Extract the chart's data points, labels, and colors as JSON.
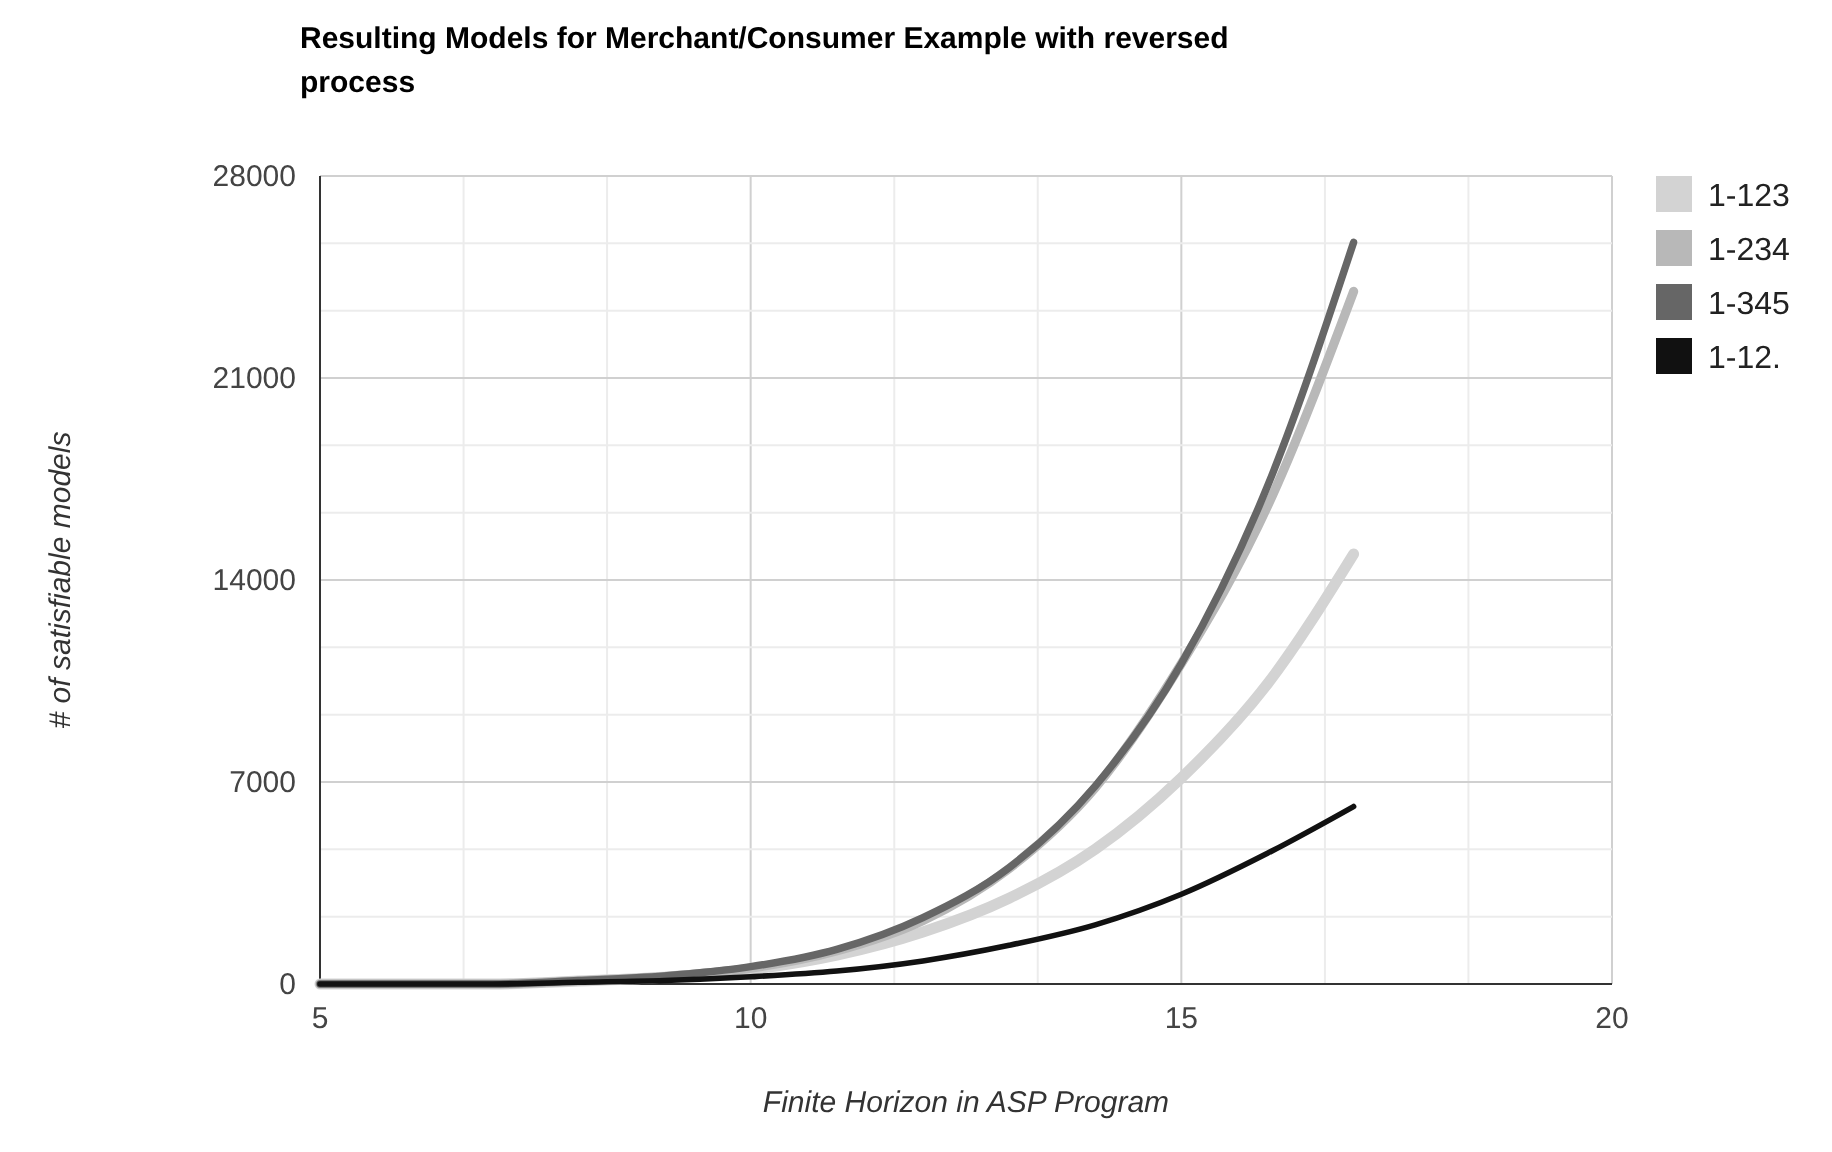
{
  "chart_data": {
    "type": "line",
    "title": "Resulting Models for Merchant/Consumer Example with reversed process",
    "xlabel": "Finite Horizon in ASP Program",
    "ylabel": "# of satisfiable models",
    "x": [
      5,
      6,
      7,
      8,
      9,
      10,
      11,
      12,
      13,
      14,
      15,
      16,
      17
    ],
    "series": [
      {
        "name": "1-123",
        "color": "#d3d3d3",
        "values": [
          0,
          0,
          0,
          100,
          230,
          500,
          1000,
          1800,
          2970,
          4670,
          7140,
          10400,
          14900
        ]
      },
      {
        "name": "1-234",
        "color": "#b8b8b8",
        "values": [
          0,
          0,
          0,
          110,
          260,
          550,
          1150,
          2200,
          4000,
          6800,
          11100,
          16550,
          24000
        ]
      },
      {
        "name": "1-345",
        "color": "#666666",
        "values": [
          0,
          0,
          0,
          120,
          280,
          600,
          1200,
          2300,
          4030,
          6860,
          11100,
          17250,
          25700
        ]
      },
      {
        "name": "1-12.",
        "color": "#111111",
        "values": [
          0,
          0,
          0,
          60,
          120,
          250,
          450,
          800,
          1340,
          2050,
          3110,
          4530,
          6150
        ]
      }
    ],
    "xlim": [
      5,
      20
    ],
    "xticks": [
      5,
      {
        "value": 6.667,
        "label": null
      },
      {
        "value": 8.333,
        "label": null
      },
      10,
      {
        "value": 11.667,
        "label": null
      },
      {
        "value": 13.333,
        "label": null
      },
      15,
      {
        "value": 16.667,
        "label": null
      },
      {
        "value": 18.333,
        "label": null
      },
      20
    ],
    "ylim": [
      0,
      28000
    ],
    "yticks": [
      0,
      {
        "value": 2333,
        "label": null
      },
      {
        "value": 4667,
        "label": null
      },
      7000,
      {
        "value": 9333,
        "label": null
      },
      {
        "value": 11667,
        "label": null
      },
      14000,
      {
        "value": 16333,
        "label": null
      },
      {
        "value": 18667,
        "label": null
      },
      21000,
      {
        "value": 23333,
        "label": null
      },
      {
        "value": 25667,
        "label": null
      },
      28000
    ],
    "grid": true,
    "legend": "right",
    "marker": "none",
    "line_style": "solid"
  }
}
